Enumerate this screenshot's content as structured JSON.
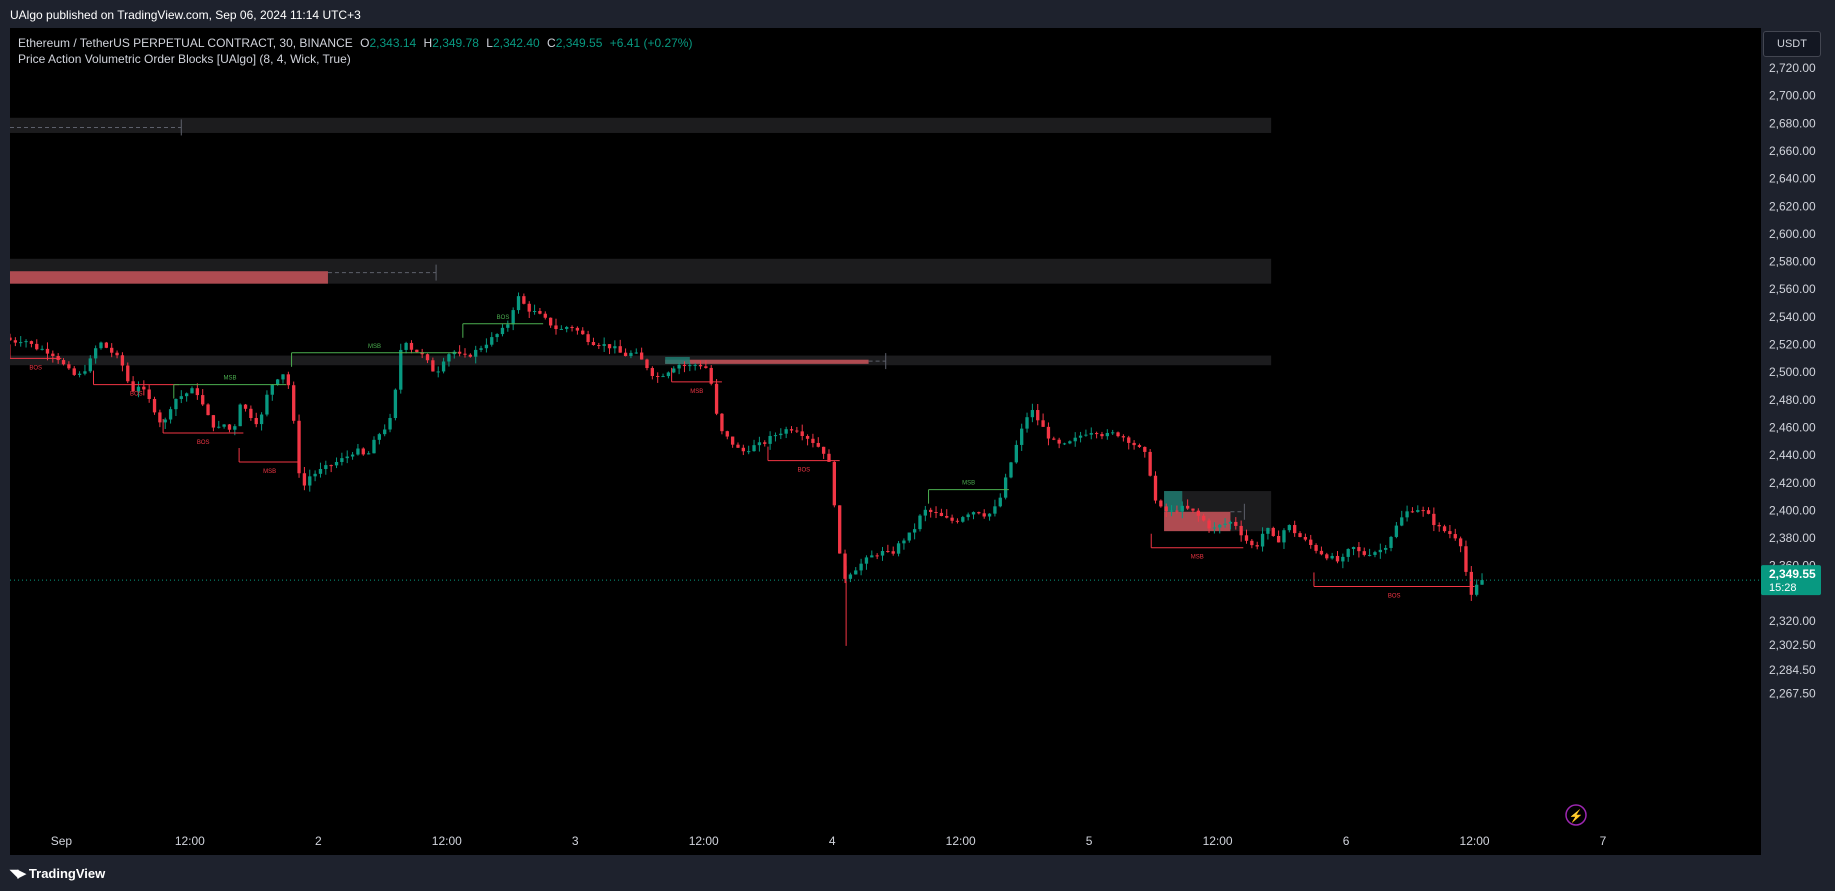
{
  "header": {
    "published": "UAlgo published on TradingView.com, Sep 06, 2024 11:14 UTC+3"
  },
  "legend": {
    "symbol": "Ethereum / TetherUS PERPETUAL CONTRACT, 30, BINANCE",
    "open_label": "O",
    "open": "2,343.14",
    "high_label": "H",
    "high": "2,349.78",
    "low_label": "L",
    "low": "2,342.40",
    "close_label": "C",
    "close": "2,349.55",
    "change": "+6.41 (+0.27%)",
    "indicator": "Price Action Volumetric Order Blocks [UAlgo] (8, 4, Wick, True)"
  },
  "currency_button": "USDT",
  "price_tag": {
    "price": "2,349.55",
    "countdown": "15:28"
  },
  "footer": {
    "brand": "TradingView",
    "brand_icon": "tradingview-logo-icon"
  },
  "colors": {
    "up": "#089981",
    "down": "#f23645",
    "structure_up": "#4caf50",
    "structure_down": "#f23645",
    "bearish_block": "#c9545a",
    "bullish_block": "#1f7a70",
    "zone": "#1c1c1e"
  },
  "chart_data": {
    "type": "candlestick",
    "symbol": "ETHUSDT.P",
    "interval": "30",
    "y_ticks": [
      "2,720.00",
      "2,700.00",
      "2,680.00",
      "2,660.00",
      "2,640.00",
      "2,620.00",
      "2,600.00",
      "2,580.00",
      "2,560.00",
      "2,540.00",
      "2,520.00",
      "2,500.00",
      "2,480.00",
      "2,460.00",
      "2,440.00",
      "2,420.00",
      "2,400.00",
      "2,380.00",
      "2,360.00",
      "2,320.00",
      "2,302.50",
      "2,284.50",
      "2,267.50"
    ],
    "y_tick_values": [
      2720,
      2700,
      2680,
      2660,
      2640,
      2620,
      2600,
      2580,
      2560,
      2540,
      2520,
      2500,
      2480,
      2460,
      2440,
      2420,
      2400,
      2380,
      2360,
      2320,
      2302.5,
      2284.5,
      2267.5
    ],
    "x_tick_labels": [
      "Sep",
      "12:00",
      "2",
      "12:00",
      "3",
      "12:00",
      "4",
      "12:00",
      "5",
      "12:00",
      "6",
      "12:00",
      "7"
    ],
    "x_tick_hours": [
      0,
      12,
      24,
      36,
      48,
      60,
      72,
      84,
      96,
      108,
      120,
      132,
      144
    ],
    "x_range_hours": [
      -4.8,
      144
    ],
    "last_price": 2349.55,
    "path": [
      [
        -4.8,
        2525
      ],
      [
        -4,
        2522
      ],
      [
        -3,
        2524
      ],
      [
        -2,
        2518
      ],
      [
        -1,
        2516
      ],
      [
        0,
        2512
      ],
      [
        1,
        2502
      ],
      [
        2,
        2496
      ],
      [
        3,
        2505
      ],
      [
        4,
        2522
      ],
      [
        5,
        2516
      ],
      [
        6,
        2508
      ],
      [
        6.5,
        2500
      ],
      [
        7,
        2484
      ],
      [
        7.5,
        2492
      ],
      [
        8,
        2488
      ],
      [
        9,
        2476
      ],
      [
        10,
        2460
      ],
      [
        10.5,
        2472
      ],
      [
        11,
        2480
      ],
      [
        12,
        2484
      ],
      [
        13,
        2488
      ],
      [
        13.5,
        2480
      ],
      [
        14,
        2470
      ],
      [
        15,
        2458
      ],
      [
        16,
        2464
      ],
      [
        16.5,
        2450
      ],
      [
        17,
        2480
      ],
      [
        18,
        2470
      ],
      [
        19,
        2462
      ],
      [
        19.5,
        2478
      ],
      [
        20,
        2490
      ],
      [
        20.5,
        2494
      ],
      [
        21,
        2500
      ],
      [
        21.5,
        2498
      ],
      [
        22,
        2480
      ],
      [
        22.5,
        2438
      ],
      [
        23,
        2414
      ],
      [
        23.5,
        2424
      ],
      [
        24,
        2426
      ],
      [
        25,
        2430
      ],
      [
        26,
        2434
      ],
      [
        27,
        2438
      ],
      [
        28,
        2444
      ],
      [
        29,
        2438
      ],
      [
        30,
        2454
      ],
      [
        31,
        2462
      ],
      [
        31.5,
        2470
      ],
      [
        32,
        2510
      ],
      [
        32.5,
        2526
      ],
      [
        33,
        2518
      ],
      [
        34,
        2514
      ],
      [
        35,
        2504
      ],
      [
        35.5,
        2498
      ],
      [
        36,
        2508
      ],
      [
        37,
        2516
      ],
      [
        38,
        2510
      ],
      [
        39,
        2514
      ],
      [
        40,
        2520
      ],
      [
        41,
        2526
      ],
      [
        42,
        2532
      ],
      [
        42.5,
        2540
      ],
      [
        43,
        2556
      ],
      [
        44,
        2546
      ],
      [
        45,
        2542
      ],
      [
        46,
        2536
      ],
      [
        47,
        2530
      ],
      [
        48,
        2534
      ],
      [
        49,
        2528
      ],
      [
        50,
        2522
      ],
      [
        51,
        2520
      ],
      [
        52,
        2518
      ],
      [
        53,
        2512
      ],
      [
        54,
        2514
      ],
      [
        55,
        2506
      ],
      [
        56,
        2496
      ],
      [
        57,
        2500
      ],
      [
        58,
        2506
      ],
      [
        59,
        2504
      ],
      [
        60,
        2506
      ],
      [
        61,
        2502
      ],
      [
        61.5,
        2476
      ],
      [
        62,
        2458
      ],
      [
        63,
        2450
      ],
      [
        64,
        2442
      ],
      [
        65,
        2446
      ],
      [
        66,
        2448
      ],
      [
        67,
        2454
      ],
      [
        68,
        2458
      ],
      [
        69,
        2460
      ],
      [
        70,
        2454
      ],
      [
        71,
        2448
      ],
      [
        72,
        2440
      ],
      [
        72.5,
        2424
      ],
      [
        73,
        2378
      ],
      [
        73.5,
        2350
      ],
      [
        74,
        2354
      ],
      [
        75,
        2360
      ],
      [
        76,
        2366
      ],
      [
        77,
        2370
      ],
      [
        78,
        2368
      ],
      [
        79,
        2378
      ],
      [
        80,
        2384
      ],
      [
        81,
        2400
      ],
      [
        82,
        2398
      ],
      [
        83,
        2394
      ],
      [
        84,
        2392
      ],
      [
        85,
        2398
      ],
      [
        86,
        2400
      ],
      [
        87,
        2396
      ],
      [
        88,
        2404
      ],
      [
        89,
        2430
      ],
      [
        90,
        2454
      ],
      [
        91,
        2474
      ],
      [
        92,
        2462
      ],
      [
        93,
        2450
      ],
      [
        94,
        2446
      ],
      [
        95,
        2450
      ],
      [
        96,
        2456
      ],
      [
        97,
        2458
      ],
      [
        98,
        2454
      ],
      [
        99,
        2456
      ],
      [
        100,
        2452
      ],
      [
        101,
        2446
      ],
      [
        102,
        2438
      ],
      [
        102.5,
        2410
      ],
      [
        103,
        2402
      ],
      [
        104,
        2398
      ],
      [
        105,
        2402
      ],
      [
        106,
        2400
      ],
      [
        107,
        2394
      ],
      [
        108,
        2386
      ],
      [
        109,
        2390
      ],
      [
        110,
        2392
      ],
      [
        111,
        2380
      ],
      [
        112,
        2372
      ],
      [
        113,
        2388
      ],
      [
        114,
        2376
      ],
      [
        115,
        2390
      ],
      [
        116,
        2382
      ],
      [
        117,
        2376
      ],
      [
        118,
        2370
      ],
      [
        119,
        2366
      ],
      [
        120,
        2362
      ],
      [
        121,
        2374
      ],
      [
        122,
        2368
      ],
      [
        123,
        2370
      ],
      [
        124,
        2372
      ],
      [
        125,
        2386
      ],
      [
        126,
        2398
      ],
      [
        127,
        2402
      ],
      [
        128,
        2398
      ],
      [
        129,
        2388
      ],
      [
        130,
        2384
      ],
      [
        131,
        2380
      ],
      [
        131.5,
        2370
      ],
      [
        132,
        2334
      ],
      [
        132.5,
        2342
      ],
      [
        133,
        2349.55
      ]
    ],
    "zones": [
      {
        "x0": -4.8,
        "x1": 113,
        "y0": 2673,
        "y1": 2684
      },
      {
        "x0": -4.8,
        "x1": 113,
        "y0": 2564,
        "y1": 2582
      },
      {
        "x0": -4.8,
        "x1": 113,
        "y0": 2505,
        "y1": 2512
      },
      {
        "x0": 103,
        "x1": 113,
        "y0": 2385,
        "y1": 2414
      }
    ],
    "order_blocks": [
      {
        "side": "bearish",
        "x0": -4.8,
        "x1": 24.9,
        "y0": 2564,
        "y1": 2573
      },
      {
        "side": "bearish",
        "x0": 56.4,
        "x1": 75.4,
        "y0": 2506,
        "y1": 2509
      },
      {
        "side": "bullish",
        "x0": 56.4,
        "x1": 58.7,
        "y0": 2506,
        "y1": 2511
      },
      {
        "side": "bearish",
        "x0": 103,
        "x1": 109.2,
        "y0": 2385,
        "y1": 2399
      },
      {
        "side": "bullish",
        "x0": 103,
        "x1": 104.7,
        "y0": 2399,
        "y1": 2414
      }
    ],
    "dashed_lines": [
      {
        "x0": -4.8,
        "x1": 11.2,
        "y": 2677
      },
      {
        "x0": 24.9,
        "x1": 35,
        "y": 2572
      },
      {
        "x0": 75.4,
        "x1": 77,
        "y": 2508
      },
      {
        "x0": 109.2,
        "x1": 110.5,
        "y": 2399
      }
    ],
    "structure": [
      {
        "label": "BOS",
        "dir": "down",
        "x0": -4.8,
        "x1": 0,
        "y": 2510
      },
      {
        "label": "BOS",
        "dir": "down",
        "x0": 3,
        "x1": 11,
        "y": 2491
      },
      {
        "label": "MSB",
        "dir": "up",
        "x0": 10.5,
        "x1": 21,
        "y": 2491
      },
      {
        "label": "BOS",
        "dir": "down",
        "x0": 9.5,
        "x1": 17,
        "y": 2456
      },
      {
        "label": "MSB",
        "dir": "down",
        "x0": 16.6,
        "x1": 22.3,
        "y": 2435
      },
      {
        "label": "MSB",
        "dir": "up",
        "x0": 21.5,
        "x1": 37,
        "y": 2514
      },
      {
        "label": "BOS",
        "dir": "up",
        "x0": 37.5,
        "x1": 45,
        "y": 2535
      },
      {
        "label": "MSB",
        "dir": "down",
        "x0": 57,
        "x1": 61.7,
        "y": 2493
      },
      {
        "label": "BOS",
        "dir": "down",
        "x0": 66,
        "x1": 72.7,
        "y": 2436
      },
      {
        "label": "MSB",
        "dir": "up",
        "x0": 81,
        "x1": 88.5,
        "y": 2415
      },
      {
        "label": "MSB",
        "dir": "down",
        "x0": 101.8,
        "x1": 110.4,
        "y": 2373
      },
      {
        "label": "BOS",
        "dir": "down",
        "x0": 117,
        "x1": 132,
        "y": 2345
      }
    ]
  }
}
